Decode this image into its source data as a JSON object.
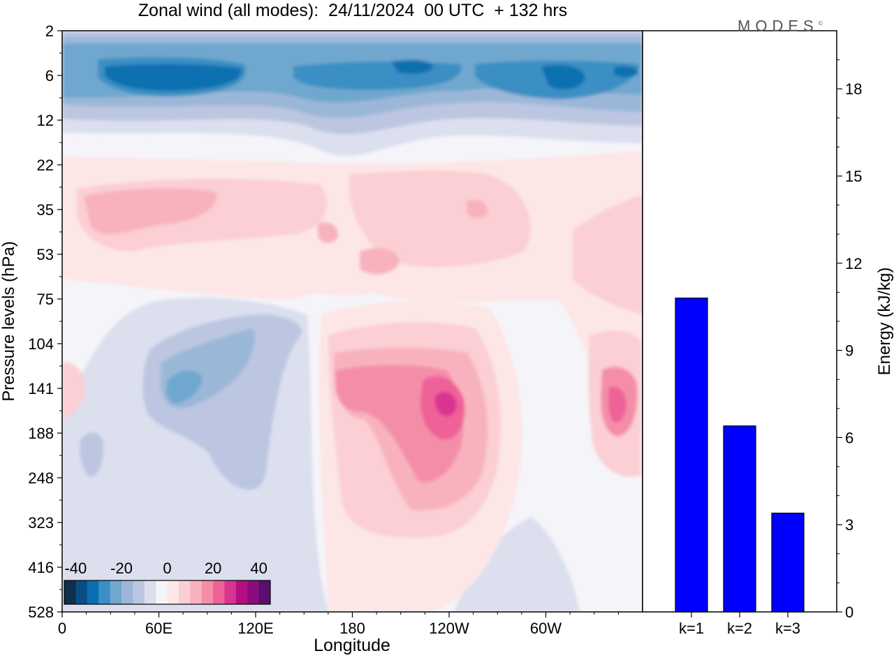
{
  "title": "Zonal wind (all modes):  24/11/2024  00 UTC  + 132 hrs",
  "brand": "MODES",
  "brand_mark": "©",
  "chart_data": [
    {
      "type": "heatmap",
      "title": "Zonal wind (all modes):  24/11/2024  00 UTC  + 132 hrs",
      "xlabel": "Longitude",
      "ylabel": "Pressure levels (hPa)",
      "x_ticks": [
        "0",
        "60E",
        "120E",
        "180",
        "120W",
        "60W"
      ],
      "y_ticks": [
        "2",
        "6",
        "12",
        "22",
        "35",
        "53",
        "75",
        "104",
        "141",
        "188",
        "248",
        "323",
        "416",
        "528"
      ],
      "colorbar": {
        "tick_labels": [
          "-40",
          "-20",
          "0",
          "20",
          "40"
        ],
        "min": -45,
        "max": 45,
        "step": 5,
        "colors": [
          "#0f2f4f",
          "#0a4d85",
          "#0870b0",
          "#3b8fc4",
          "#6fa7cf",
          "#9bb7d8",
          "#bcc6e1",
          "#dcdfee",
          "#f5f5f9",
          "#fde6e6",
          "#fbcfd3",
          "#f8b2be",
          "#f48ea8",
          "#ee6299",
          "#d93590",
          "#b40e83",
          "#8a0c7c",
          "#5a0f70"
        ]
      },
      "features": [
        {
          "name": "upper easterly band",
          "lon": [
            15,
            340
          ],
          "level": [
            4,
            12
          ],
          "value": -30
        },
        {
          "name": "easterly core 1",
          "lon": [
            25,
            115
          ],
          "level": [
            5,
            8
          ],
          "value": -38
        },
        {
          "name": "easterly core 2",
          "lon": [
            200,
            240
          ],
          "level": [
            5,
            7
          ],
          "value": -37
        },
        {
          "name": "easterly core 3",
          "lon": [
            290,
            325
          ],
          "level": [
            5,
            8
          ],
          "value": -37
        },
        {
          "name": "stratospheric westerlies",
          "lon": [
            10,
            130
          ],
          "level": [
            30,
            50
          ],
          "value": 11
        },
        {
          "name": "tropospheric easterlies",
          "lon": [
            50,
            130
          ],
          "level": [
            100,
            200
          ],
          "value": -17
        },
        {
          "name": "westerly jet",
          "lon": [
            160,
            260
          ],
          "level": [
            100,
            250
          ],
          "value": 26
        },
        {
          "name": "westerly jet core",
          "lon": [
            230,
            250
          ],
          "level": [
            120,
            170
          ],
          "value": 37
        },
        {
          "name": "eastern westerly maximum",
          "lon": [
            340,
            360
          ],
          "level": [
            100,
            250
          ],
          "value": 30
        }
      ]
    },
    {
      "type": "bar",
      "ylabel": "Energy (kJ/kg)",
      "categories": [
        "k=1",
        "k=2",
        "k=3"
      ],
      "values": [
        10.8,
        6.4,
        3.4
      ],
      "ylim": [
        0,
        20
      ],
      "y_ticks": [
        0,
        3,
        6,
        9,
        12,
        15,
        18
      ],
      "bar_color": "#0000ff"
    }
  ]
}
